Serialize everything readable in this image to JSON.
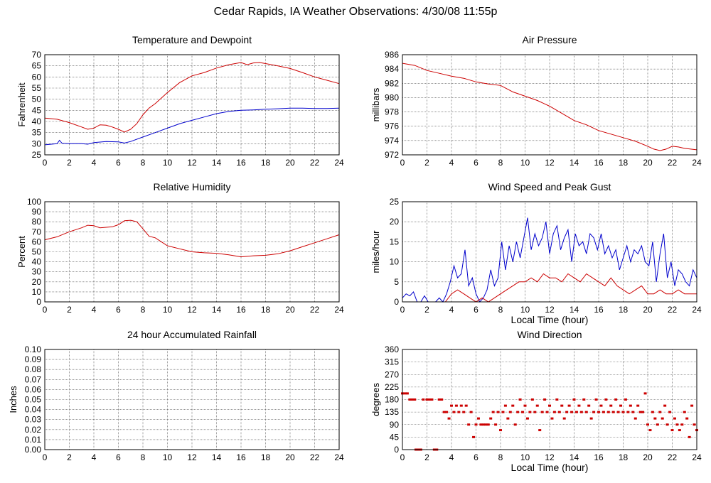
{
  "title": "Cedar Rapids, IA Weather Observations: 4/30/08 11:55p",
  "chart_data": [
    {
      "id": "temp",
      "type": "line",
      "title": "Temperature and Dewpoint",
      "xlabel": "",
      "ylabel": "Fahrenheit",
      "xlim": [
        0,
        24
      ],
      "ylim": [
        25,
        70
      ],
      "xticks": [
        0,
        2,
        4,
        6,
        8,
        10,
        12,
        14,
        16,
        18,
        20,
        22,
        24
      ],
      "yticks": [
        25,
        30,
        35,
        40,
        45,
        50,
        55,
        60,
        65,
        70
      ],
      "grid": true,
      "series": [
        {
          "color": "#cc0000",
          "x": [
            0,
            1,
            2,
            3,
            3.5,
            4,
            4.5,
            5,
            5.5,
            6,
            6.5,
            7,
            7.5,
            8,
            8.5,
            9,
            9.5,
            10,
            11,
            12,
            13,
            14,
            15,
            16,
            16.5,
            17,
            17.5,
            18,
            19,
            20,
            21,
            22,
            23,
            24
          ],
          "values": [
            41.5,
            41,
            39.5,
            37.5,
            36.5,
            37,
            38.5,
            38.3,
            37.5,
            36.5,
            35.2,
            36.5,
            39,
            43,
            46,
            48,
            50.5,
            53,
            57.5,
            60.5,
            62,
            64,
            65.5,
            66.5,
            65.5,
            66.3,
            66.5,
            66,
            65,
            63.8,
            62,
            60,
            58.5,
            57
          ]
        },
        {
          "color": "#0000cc",
          "x": [
            0,
            1,
            1.2,
            1.4,
            2,
            3,
            3.5,
            4,
            5,
            6,
            6.5,
            7,
            8,
            9,
            10,
            11,
            12,
            13,
            14,
            15,
            16,
            17,
            18,
            19,
            20,
            21,
            22,
            23,
            24
          ],
          "values": [
            29.5,
            30,
            31.5,
            30.2,
            30,
            30,
            29.8,
            30.5,
            31,
            30.8,
            30.3,
            31,
            33,
            35,
            37,
            39,
            40.5,
            42,
            43.5,
            44.5,
            45,
            45.2,
            45.5,
            45.7,
            46,
            46,
            45.8,
            45.8,
            46
          ]
        }
      ]
    },
    {
      "id": "pressure",
      "type": "line",
      "title": "Air Pressure",
      "xlabel": "",
      "ylabel": "millibars",
      "xlim": [
        0,
        24
      ],
      "ylim": [
        972,
        986
      ],
      "xticks": [
        0,
        2,
        4,
        6,
        8,
        10,
        12,
        14,
        16,
        18,
        20,
        22,
        24
      ],
      "yticks": [
        972,
        974,
        976,
        978,
        980,
        982,
        984,
        986
      ],
      "grid": true,
      "series": [
        {
          "color": "#cc0000",
          "x": [
            0,
            1,
            2,
            3,
            4,
            5,
            6,
            7,
            8,
            9,
            10,
            11,
            12,
            13,
            14,
            15,
            16,
            17,
            18,
            19,
            20,
            20.5,
            21,
            21.5,
            22,
            22.5,
            23,
            24
          ],
          "values": [
            984.8,
            984.5,
            983.8,
            983.4,
            983,
            982.7,
            982.2,
            981.9,
            981.7,
            980.8,
            980.2,
            979.6,
            978.8,
            977.8,
            976.8,
            976.2,
            975.4,
            974.9,
            974.4,
            973.9,
            973.2,
            972.8,
            972.6,
            972.8,
            973.2,
            973.1,
            972.9,
            972.7
          ]
        }
      ]
    },
    {
      "id": "humidity",
      "type": "line",
      "title": "Relative Humidity",
      "xlabel": "",
      "ylabel": "Percent",
      "xlim": [
        0,
        24
      ],
      "ylim": [
        0,
        100
      ],
      "xticks": [
        0,
        2,
        4,
        6,
        8,
        10,
        12,
        14,
        16,
        18,
        20,
        22,
        24
      ],
      "yticks": [
        0,
        10,
        20,
        30,
        40,
        50,
        60,
        70,
        80,
        90,
        100
      ],
      "grid": true,
      "series": [
        {
          "color": "#cc0000",
          "x": [
            0,
            1,
            2,
            3,
            3.5,
            4,
            4.5,
            5,
            5.5,
            6,
            6.5,
            7,
            7.5,
            8,
            8.5,
            9,
            10,
            11,
            12,
            13,
            14,
            15,
            16,
            17,
            18,
            19,
            20,
            21,
            22,
            23,
            24
          ],
          "values": [
            62,
            65,
            70,
            74,
            76.5,
            76,
            74,
            74.5,
            75,
            77,
            81,
            81.5,
            80,
            73,
            65.5,
            64,
            56,
            53,
            50,
            49,
            48.5,
            47,
            45,
            46,
            46.5,
            48,
            51,
            55,
            59,
            63,
            67
          ]
        }
      ]
    },
    {
      "id": "wind",
      "type": "line",
      "title": "Wind Speed and Peak Gust",
      "xlabel": "Local Time (hour)",
      "ylabel": "miles/hour",
      "xlim": [
        0,
        24
      ],
      "ylim": [
        0,
        25
      ],
      "xticks": [
        0,
        2,
        4,
        6,
        8,
        10,
        12,
        14,
        16,
        18,
        20,
        22,
        24
      ],
      "yticks": [
        0,
        5,
        10,
        15,
        20,
        25
      ],
      "grid": true,
      "series": [
        {
          "color": "#0000cc",
          "x": [
            0,
            0.3,
            0.6,
            0.9,
            1.2,
            1.5,
            1.8,
            2.1,
            2.4,
            2.7,
            3,
            3.3,
            3.6,
            3.9,
            4.2,
            4.5,
            4.8,
            5.1,
            5.4,
            5.7,
            6,
            6.3,
            6.6,
            6.9,
            7.2,
            7.5,
            7.8,
            8.1,
            8.4,
            8.7,
            9,
            9.3,
            9.6,
            9.9,
            10.2,
            10.5,
            10.8,
            11.1,
            11.4,
            11.7,
            12,
            12.3,
            12.6,
            12.9,
            13.2,
            13.5,
            13.8,
            14.1,
            14.4,
            14.7,
            15,
            15.3,
            15.6,
            15.9,
            16.2,
            16.5,
            16.8,
            17.1,
            17.4,
            17.7,
            18,
            18.3,
            18.6,
            18.9,
            19.2,
            19.5,
            19.8,
            20.1,
            20.4,
            20.7,
            21,
            21.3,
            21.6,
            21.9,
            22.2,
            22.5,
            22.8,
            23.1,
            23.4,
            23.7,
            24
          ],
          "values": [
            1,
            2,
            1.5,
            2.5,
            0,
            0,
            1.5,
            0,
            0,
            0,
            1,
            0,
            2,
            5,
            9,
            6,
            7,
            13,
            4,
            6,
            2,
            0,
            1,
            3,
            8,
            4,
            6,
            15,
            8,
            14,
            10,
            15,
            11,
            16,
            21,
            13,
            17,
            14,
            16,
            20,
            12,
            17,
            19,
            13,
            16,
            18,
            10,
            17,
            14,
            15,
            12,
            17,
            16,
            13,
            17,
            12,
            14,
            11,
            13,
            8,
            11,
            14,
            10,
            13,
            12,
            14,
            10,
            9,
            15,
            5,
            12,
            17,
            6,
            10,
            4,
            8,
            7,
            5,
            4,
            8,
            6
          ]
        },
        {
          "color": "#cc0000",
          "x": [
            0,
            0.5,
            1,
            1.5,
            2,
            2.5,
            3,
            3.5,
            4,
            4.5,
            5,
            5.5,
            6,
            6.5,
            7,
            7.5,
            8,
            8.5,
            9,
            9.5,
            10,
            10.5,
            11,
            11.5,
            12,
            12.5,
            13,
            13.5,
            14,
            14.5,
            15,
            15.5,
            16,
            16.5,
            17,
            17.5,
            18,
            18.5,
            19,
            19.5,
            20,
            20.5,
            21,
            21.5,
            22,
            22.5,
            23,
            23.5,
            24
          ],
          "values": [
            0,
            0,
            0,
            0,
            0,
            0,
            0,
            0,
            2,
            3,
            2,
            1,
            0,
            1,
            0,
            1,
            2,
            3,
            4,
            5,
            5,
            6,
            5,
            7,
            6,
            6,
            5,
            7,
            6,
            5,
            7,
            6,
            5,
            4,
            6,
            4,
            3,
            2,
            3,
            4,
            2,
            2,
            3,
            2,
            2,
            3,
            2,
            2,
            2
          ]
        }
      ]
    },
    {
      "id": "rain",
      "type": "line",
      "title": "24 hour Accumulated Rainfall",
      "xlabel": "",
      "ylabel": "Inches",
      "xlim": [
        0,
        24
      ],
      "ylim": [
        0,
        0.1
      ],
      "xticks": [
        0,
        2,
        4,
        6,
        8,
        10,
        12,
        14,
        16,
        18,
        20,
        22,
        24
      ],
      "yticks": [
        "0.00",
        "0.01",
        "0.02",
        "0.03",
        "0.04",
        "0.05",
        "0.06",
        "0.07",
        "0.08",
        "0.09",
        "0.10"
      ],
      "grid": true,
      "series": [
        {
          "color": "#cc0000",
          "x": [
            0,
            24
          ],
          "values": [
            0,
            0
          ]
        }
      ]
    },
    {
      "id": "direction",
      "type": "scatter",
      "title": "Wind Direction",
      "xlabel": "Local Time (hour)",
      "ylabel": "degrees",
      "xlim": [
        0,
        24
      ],
      "ylim": [
        0,
        360
      ],
      "xticks": [
        0,
        2,
        4,
        6,
        8,
        10,
        12,
        14,
        16,
        18,
        20,
        22,
        24
      ],
      "yticks": [
        0,
        45,
        90,
        135,
        180,
        225,
        270,
        315,
        360
      ],
      "grid": true,
      "series": [
        {
          "color": "#cc0000",
          "x": [
            0,
            0.2,
            0.4,
            0.6,
            0.8,
            1,
            1.1,
            1.3,
            1.5,
            1.7,
            2,
            2.2,
            2.4,
            2.6,
            2.8,
            3,
            3.2,
            3.4,
            3.6,
            3.8,
            4,
            4.2,
            4.4,
            4.6,
            4.8,
            5,
            5.2,
            5.4,
            5.6,
            5.8,
            6,
            6.2,
            6.4,
            6.6,
            6.8,
            7,
            7.2,
            7.4,
            7.6,
            7.8,
            8,
            8.2,
            8.4,
            8.6,
            8.8,
            9,
            9.2,
            9.4,
            9.6,
            9.8,
            10,
            10.2,
            10.4,
            10.6,
            10.8,
            11,
            11.2,
            11.4,
            11.6,
            11.8,
            12,
            12.2,
            12.4,
            12.6,
            12.8,
            13,
            13.2,
            13.4,
            13.6,
            13.8,
            14,
            14.2,
            14.4,
            14.6,
            14.8,
            15,
            15.2,
            15.4,
            15.6,
            15.8,
            16,
            16.2,
            16.4,
            16.6,
            16.8,
            17,
            17.2,
            17.4,
            17.6,
            17.8,
            18,
            18.2,
            18.4,
            18.6,
            18.8,
            19,
            19.2,
            19.4,
            19.6,
            19.8,
            20,
            20.2,
            20.4,
            20.6,
            20.8,
            21,
            21.2,
            21.4,
            21.6,
            21.8,
            22,
            22.2,
            22.4,
            22.6,
            22.8,
            23,
            23.2,
            23.4,
            23.6,
            23.8,
            24
          ],
          "values": [
            202,
            202,
            202,
            180,
            180,
            180,
            0,
            0,
            0,
            180,
            180,
            180,
            180,
            0,
            0,
            180,
            180,
            135,
            135,
            112,
            158,
            135,
            158,
            135,
            158,
            135,
            158,
            90,
            135,
            45,
            90,
            112,
            90,
            90,
            90,
            90,
            112,
            135,
            90,
            135,
            70,
            135,
            158,
            112,
            135,
            158,
            90,
            135,
            180,
            135,
            158,
            112,
            135,
            180,
            135,
            158,
            70,
            135,
            180,
            135,
            158,
            112,
            135,
            180,
            135,
            158,
            112,
            135,
            158,
            135,
            180,
            135,
            158,
            135,
            180,
            135,
            158,
            112,
            135,
            180,
            135,
            158,
            135,
            180,
            135,
            158,
            135,
            180,
            135,
            158,
            135,
            180,
            135,
            158,
            135,
            112,
            158,
            135,
            135,
            202,
            90,
            70,
            135,
            112,
            90,
            135,
            112,
            158,
            90,
            135,
            70,
            112,
            90,
            70,
            90,
            135,
            112,
            45,
            158,
            90,
            70
          ]
        }
      ]
    }
  ]
}
